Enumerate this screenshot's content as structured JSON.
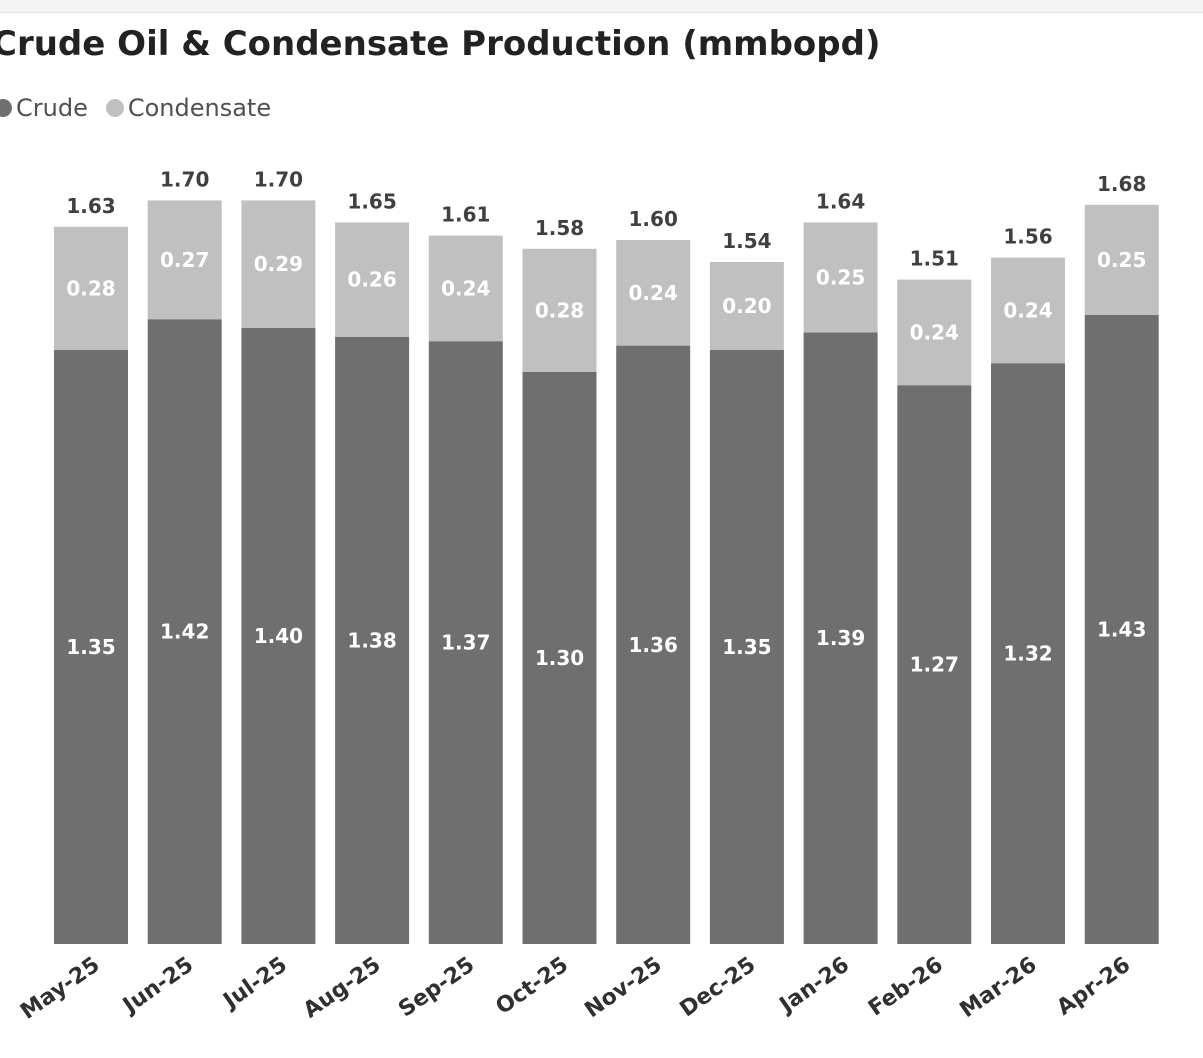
{
  "chart_data": {
    "type": "bar",
    "stacked": true,
    "title": "Crude Oil & Condensate Production (mmbopd)",
    "legend_position": "top-left",
    "grid": false,
    "ylim": [
      0,
      1.85
    ],
    "categories": [
      "May-25",
      "Jun-25",
      "Jul-25",
      "Aug-25",
      "Sep-25",
      "Oct-25",
      "Nov-25",
      "Dec-25",
      "Jan-26",
      "Feb-26",
      "Mar-26",
      "Apr-26"
    ],
    "series": [
      {
        "name": "Crude",
        "color": "#6f6f6f",
        "values": [
          1.35,
          1.42,
          1.4,
          1.38,
          1.37,
          1.3,
          1.36,
          1.35,
          1.39,
          1.27,
          1.32,
          1.43
        ]
      },
      {
        "name": "Condensate",
        "color": "#c0c0c0",
        "values": [
          0.28,
          0.27,
          0.29,
          0.26,
          0.24,
          0.28,
          0.24,
          0.2,
          0.25,
          0.24,
          0.24,
          0.25
        ]
      }
    ],
    "totals": [
      1.63,
      1.7,
      1.7,
      1.65,
      1.61,
      1.58,
      1.6,
      1.54,
      1.64,
      1.51,
      1.56,
      1.68
    ]
  }
}
